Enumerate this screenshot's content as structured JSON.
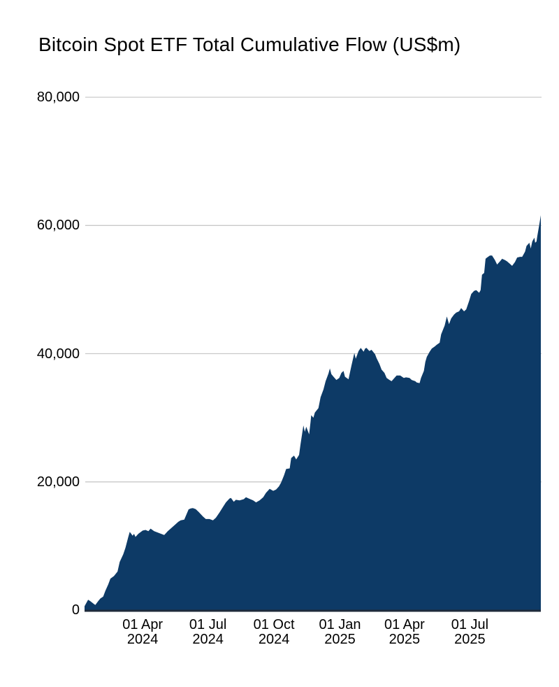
{
  "chart_data": {
    "type": "area",
    "title": "Bitcoin Spot ETF Total Cumulative Flow (US$m)",
    "xlabel": "",
    "ylabel": "",
    "ylim": [
      0,
      80000
    ],
    "x_domain": [
      "2024-01-11",
      "2025-10-08"
    ],
    "grid": true,
    "legend": "none",
    "colors": {
      "area_fill": "#0d3a66",
      "baseline": "#1e2a3a",
      "gridline": "#c9c9c9",
      "text": "#000000",
      "background": "#ffffff"
    },
    "y_ticks": [
      {
        "value": 0,
        "label": "0"
      },
      {
        "value": 20000,
        "label": "20,000"
      },
      {
        "value": 40000,
        "label": "40,000"
      },
      {
        "value": 60000,
        "label": "60,000"
      },
      {
        "value": 80000,
        "label": "80,000"
      }
    ],
    "x_ticks": [
      {
        "date": "2024-04-01",
        "line1": "01 Apr",
        "line2": "2024"
      },
      {
        "date": "2024-07-01",
        "line1": "01 Jul",
        "line2": "2024"
      },
      {
        "date": "2024-10-01",
        "line1": "01 Oct",
        "line2": "2024"
      },
      {
        "date": "2025-01-01",
        "line1": "01 Jan",
        "line2": "2025"
      },
      {
        "date": "2025-04-01",
        "line1": "01 Apr",
        "line2": "2025"
      },
      {
        "date": "2025-07-01",
        "line1": "01 Jul",
        "line2": "2025"
      }
    ],
    "series": [
      {
        "name": "Total Cumulative Flow",
        "points": [
          [
            "2024-01-11",
            600
          ],
          [
            "2024-01-16",
            1600
          ],
          [
            "2024-01-19",
            1400
          ],
          [
            "2024-01-24",
            950
          ],
          [
            "2024-01-26",
            800
          ],
          [
            "2024-01-30",
            1400
          ],
          [
            "2024-02-02",
            1800
          ],
          [
            "2024-02-06",
            2100
          ],
          [
            "2024-02-09",
            3000
          ],
          [
            "2024-02-13",
            4000
          ],
          [
            "2024-02-16",
            4900
          ],
          [
            "2024-02-21",
            5300
          ],
          [
            "2024-02-26",
            6000
          ],
          [
            "2024-02-29",
            7500
          ],
          [
            "2024-03-05",
            8700
          ],
          [
            "2024-03-08",
            9700
          ],
          [
            "2024-03-12",
            11400
          ],
          [
            "2024-03-14",
            12200
          ],
          [
            "2024-03-18",
            11600
          ],
          [
            "2024-03-20",
            11900
          ],
          [
            "2024-03-22",
            11400
          ],
          [
            "2024-03-26",
            11900
          ],
          [
            "2024-04-01",
            12400
          ],
          [
            "2024-04-05",
            12500
          ],
          [
            "2024-04-09",
            12300
          ],
          [
            "2024-04-12",
            12700
          ],
          [
            "2024-04-17",
            12300
          ],
          [
            "2024-04-24",
            12000
          ],
          [
            "2024-05-01",
            11700
          ],
          [
            "2024-05-06",
            12300
          ],
          [
            "2024-05-10",
            12700
          ],
          [
            "2024-05-16",
            13300
          ],
          [
            "2024-05-21",
            13800
          ],
          [
            "2024-05-24",
            14000
          ],
          [
            "2024-05-29",
            14100
          ],
          [
            "2024-06-04",
            15700
          ],
          [
            "2024-06-07",
            15850
          ],
          [
            "2024-06-10",
            15900
          ],
          [
            "2024-06-14",
            15750
          ],
          [
            "2024-06-18",
            15300
          ],
          [
            "2024-06-24",
            14600
          ],
          [
            "2024-06-28",
            14200
          ],
          [
            "2024-07-03",
            14200
          ],
          [
            "2024-07-08",
            14000
          ],
          [
            "2024-07-12",
            14400
          ],
          [
            "2024-07-17",
            15200
          ],
          [
            "2024-07-22",
            16100
          ],
          [
            "2024-07-26",
            16800
          ],
          [
            "2024-07-31",
            17400
          ],
          [
            "2024-08-02",
            17500
          ],
          [
            "2024-08-06",
            16900
          ],
          [
            "2024-08-09",
            17200
          ],
          [
            "2024-08-14",
            17100
          ],
          [
            "2024-08-20",
            17300
          ],
          [
            "2024-08-23",
            17600
          ],
          [
            "2024-08-27",
            17400
          ],
          [
            "2024-09-02",
            17100
          ],
          [
            "2024-09-06",
            16800
          ],
          [
            "2024-09-11",
            17100
          ],
          [
            "2024-09-16",
            17600
          ],
          [
            "2024-09-20",
            18300
          ],
          [
            "2024-09-25",
            18900
          ],
          [
            "2024-09-30",
            18600
          ],
          [
            "2024-10-04",
            18800
          ],
          [
            "2024-10-08",
            19300
          ],
          [
            "2024-10-11",
            19900
          ],
          [
            "2024-10-15",
            21000
          ],
          [
            "2024-10-18",
            22000
          ],
          [
            "2024-10-23",
            22100
          ],
          [
            "2024-10-25",
            23700
          ],
          [
            "2024-10-29",
            24100
          ],
          [
            "2024-11-01",
            23500
          ],
          [
            "2024-11-05",
            24200
          ],
          [
            "2024-11-07",
            25800
          ],
          [
            "2024-11-11",
            28800
          ],
          [
            "2024-11-13",
            27800
          ],
          [
            "2024-11-15",
            28600
          ],
          [
            "2024-11-19",
            27400
          ],
          [
            "2024-11-21",
            29300
          ],
          [
            "2024-11-22",
            30400
          ],
          [
            "2024-11-25",
            30000
          ],
          [
            "2024-11-27",
            30800
          ],
          [
            "2024-12-02",
            31500
          ],
          [
            "2024-12-05",
            33200
          ],
          [
            "2024-12-09",
            34400
          ],
          [
            "2024-12-12",
            35700
          ],
          [
            "2024-12-16",
            36900
          ],
          [
            "2024-12-18",
            37700
          ],
          [
            "2024-12-20",
            36800
          ],
          [
            "2024-12-23",
            36400
          ],
          [
            "2024-12-27",
            35900
          ],
          [
            "2024-12-31",
            36200
          ],
          [
            "2025-01-03",
            37000
          ],
          [
            "2025-01-06",
            37300
          ],
          [
            "2025-01-08",
            36400
          ],
          [
            "2025-01-13",
            36000
          ],
          [
            "2025-01-15",
            37100
          ],
          [
            "2025-01-17",
            38100
          ],
          [
            "2025-01-21",
            40100
          ],
          [
            "2025-01-23",
            39200
          ],
          [
            "2025-01-27",
            40400
          ],
          [
            "2025-01-30",
            40900
          ],
          [
            "2025-02-03",
            40300
          ],
          [
            "2025-02-05",
            40800
          ],
          [
            "2025-02-07",
            40900
          ],
          [
            "2025-02-11",
            40400
          ],
          [
            "2025-02-14",
            40600
          ],
          [
            "2025-02-19",
            39900
          ],
          [
            "2025-02-21",
            39300
          ],
          [
            "2025-02-25",
            38400
          ],
          [
            "2025-02-28",
            37500
          ],
          [
            "2025-03-04",
            37000
          ],
          [
            "2025-03-07",
            36200
          ],
          [
            "2025-03-11",
            35900
          ],
          [
            "2025-03-14",
            35700
          ],
          [
            "2025-03-18",
            36200
          ],
          [
            "2025-03-21",
            36600
          ],
          [
            "2025-03-26",
            36600
          ],
          [
            "2025-03-31",
            36200
          ],
          [
            "2025-04-03",
            36300
          ],
          [
            "2025-04-08",
            36200
          ],
          [
            "2025-04-11",
            35900
          ],
          [
            "2025-04-16",
            35700
          ],
          [
            "2025-04-18",
            35500
          ],
          [
            "2025-04-22",
            35400
          ],
          [
            "2025-04-24",
            36200
          ],
          [
            "2025-04-28",
            37300
          ],
          [
            "2025-04-30",
            38700
          ],
          [
            "2025-05-02",
            39500
          ],
          [
            "2025-05-06",
            40300
          ],
          [
            "2025-05-09",
            40800
          ],
          [
            "2025-05-13",
            41100
          ],
          [
            "2025-05-16",
            41400
          ],
          [
            "2025-05-20",
            41700
          ],
          [
            "2025-05-22",
            43000
          ],
          [
            "2025-05-27",
            44400
          ],
          [
            "2025-05-30",
            45800
          ],
          [
            "2025-06-02",
            44600
          ],
          [
            "2025-06-05",
            45500
          ],
          [
            "2025-06-09",
            46100
          ],
          [
            "2025-06-12",
            46400
          ],
          [
            "2025-06-16",
            46600
          ],
          [
            "2025-06-19",
            47100
          ],
          [
            "2025-06-23",
            46600
          ],
          [
            "2025-06-26",
            46900
          ],
          [
            "2025-06-30",
            48200
          ],
          [
            "2025-07-03",
            49300
          ],
          [
            "2025-07-07",
            49800
          ],
          [
            "2025-07-10",
            49900
          ],
          [
            "2025-07-14",
            49500
          ],
          [
            "2025-07-16",
            49900
          ],
          [
            "2025-07-18",
            52300
          ],
          [
            "2025-07-21",
            52600
          ],
          [
            "2025-07-23",
            54800
          ],
          [
            "2025-07-25",
            55000
          ],
          [
            "2025-07-29",
            55300
          ],
          [
            "2025-08-01",
            55300
          ],
          [
            "2025-08-05",
            54600
          ],
          [
            "2025-08-08",
            53900
          ],
          [
            "2025-08-12",
            54400
          ],
          [
            "2025-08-15",
            54800
          ],
          [
            "2025-08-19",
            54600
          ],
          [
            "2025-08-22",
            54400
          ],
          [
            "2025-08-26",
            54000
          ],
          [
            "2025-08-29",
            53700
          ],
          [
            "2025-09-02",
            54300
          ],
          [
            "2025-09-05",
            55000
          ],
          [
            "2025-09-09",
            55100
          ],
          [
            "2025-09-12",
            55100
          ],
          [
            "2025-09-16",
            55900
          ],
          [
            "2025-09-18",
            56800
          ],
          [
            "2025-09-22",
            57300
          ],
          [
            "2025-09-24",
            56400
          ],
          [
            "2025-09-26",
            57500
          ],
          [
            "2025-09-29",
            58100
          ],
          [
            "2025-09-30",
            57300
          ],
          [
            "2025-10-02",
            57500
          ],
          [
            "2025-10-03",
            58300
          ],
          [
            "2025-10-06",
            60200
          ],
          [
            "2025-10-08",
            61600
          ]
        ]
      }
    ]
  }
}
